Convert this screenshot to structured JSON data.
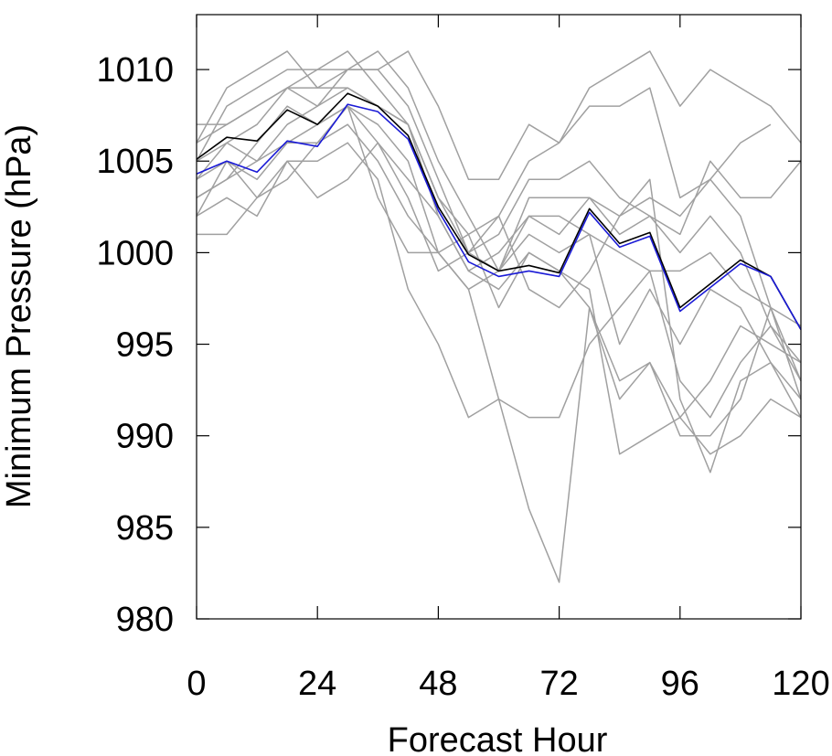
{
  "chart_data": {
    "type": "line",
    "xlabel": "Forecast Hour",
    "ylabel": "Minimum Pressure (hPa)",
    "xlim": [
      0,
      120
    ],
    "ylim": [
      980,
      1013
    ],
    "xticks": [
      "0",
      "24",
      "48",
      "72",
      "96",
      "120"
    ],
    "yticks": [
      "1010",
      "1005",
      "1000",
      "995",
      "990",
      "985",
      "980"
    ],
    "grid": false,
    "legend": "none",
    "x": [
      0,
      6,
      12,
      18,
      24,
      30,
      36,
      42,
      48,
      54,
      60,
      66,
      72,
      78,
      84,
      90,
      96,
      102,
      108,
      114,
      120
    ],
    "series": [
      {
        "color": "#000000",
        "values": [
          1005.1,
          1006.3,
          1006.1,
          1007.8,
          1007.0,
          1008.7,
          1008.0,
          1006.4,
          1002.5,
          999.9,
          999.0,
          999.3,
          998.9,
          1002.4,
          1000.5,
          1001.1,
          997.0,
          998.3,
          999.6,
          998.7,
          995.8
        ]
      },
      {
        "color": "#1a1ad6",
        "values": [
          1004.3,
          1005.0,
          1004.4,
          1006.1,
          1005.8,
          1008.1,
          1007.7,
          1006.2,
          1002.3,
          999.5,
          998.7,
          999.0,
          998.7,
          1002.2,
          1000.3,
          1000.9,
          996.8,
          998.1,
          999.4,
          998.7,
          995.8
        ]
      },
      {
        "color": "#a0a0a0",
        "values": [
          1006,
          1009,
          1010,
          1011,
          1009,
          1010,
          1010,
          1011,
          1008,
          1004,
          1004,
          1007,
          1006,
          1009,
          1010,
          1011,
          1008,
          1010,
          1009,
          1008,
          1006
        ]
      },
      {
        "color": "#a0a0a0",
        "values": [
          1005,
          1008,
          1009,
          1010,
          1010,
          1011,
          1009,
          1007,
          1003,
          1001,
          1002,
          1005,
          1006,
          1008,
          1008,
          1009,
          1003,
          1004,
          1006,
          1007,
          null
        ]
      },
      {
        "color": "#a0a0a0",
        "values": [
          1007,
          1007,
          1008,
          1009,
          1008,
          1010,
          1010,
          1008,
          1004,
          1000,
          1001,
          1004,
          1004,
          1005,
          1003,
          1002,
          1001,
          1005,
          1003,
          1003,
          1005
        ]
      },
      {
        "color": "#a0a0a0",
        "values": [
          1004,
          1006,
          1007,
          1009,
          1010,
          1010,
          1011,
          1009,
          1005,
          1002,
          999,
          1002,
          1001,
          1003,
          1002,
          1003,
          1002,
          1004,
          1002,
          997,
          996
        ]
      },
      {
        "color": "#a0a0a0",
        "values": [
          1006,
          1007,
          1008,
          1009,
          1009,
          1009,
          1008,
          1007,
          1003,
          1000,
          999,
          1003,
          1003,
          1003,
          1001,
          1002,
          1000,
          1002,
          1000,
          996,
          994
        ]
      },
      {
        "color": "#a0a0a0",
        "values": [
          1005,
          1006,
          1005,
          1007,
          1008,
          1009,
          1008,
          1007,
          1002,
          999,
          1000,
          1002,
          1002,
          1001,
          1000,
          999,
          999,
          1000,
          998,
          997,
          993
        ]
      },
      {
        "color": "#a0a0a0",
        "values": [
          1003,
          1004,
          1005,
          1006,
          1007,
          1008,
          1007,
          1005,
          1000,
          998,
          999,
          1001,
          1000,
          1001,
          995,
          998,
          995,
          998,
          997,
          994,
          992
        ]
      },
      {
        "color": "#a0a0a0",
        "values": [
          1002,
          1005,
          1004,
          1006,
          1006,
          1008,
          1006,
          1004,
          1002,
          999,
          998,
          1000,
          999,
          997,
          993,
          994,
          991,
          993,
          996,
          995,
          994
        ]
      },
      {
        "color": "#a0a0a0",
        "values": [
          1001,
          1001,
          1003,
          1004,
          1006,
          1007,
          1005,
          1002,
          1000,
          1001,
          997,
          1000,
          999,
          998,
          989,
          990,
          991,
          989,
          990,
          992,
          991
        ]
      },
      {
        "color": "#a0a0a0",
        "values": [
          1002,
          1003,
          1002,
          1005,
          1003,
          1004,
          1006,
          1003,
          999,
          1000,
          1002,
          998,
          997,
          999,
          1002,
          1004,
          992,
          988,
          993,
          994,
          991
        ]
      },
      {
        "color": "#a0a0a0",
        "values": [
          1004,
          1005,
          1003,
          1005,
          1005,
          1006,
          1004,
          998,
          995,
          991,
          992,
          991,
          991,
          995,
          997,
          999,
          993,
          991,
          994,
          996,
          993
        ]
      },
      {
        "color": "#a0a0a0",
        "values": [
          1003,
          1004,
          1006,
          1008,
          1007,
          1008,
          1003,
          1000,
          1000,
          998,
          992,
          986,
          982,
          997,
          992,
          994,
          990,
          990,
          992,
          997,
          992
        ]
      }
    ]
  }
}
